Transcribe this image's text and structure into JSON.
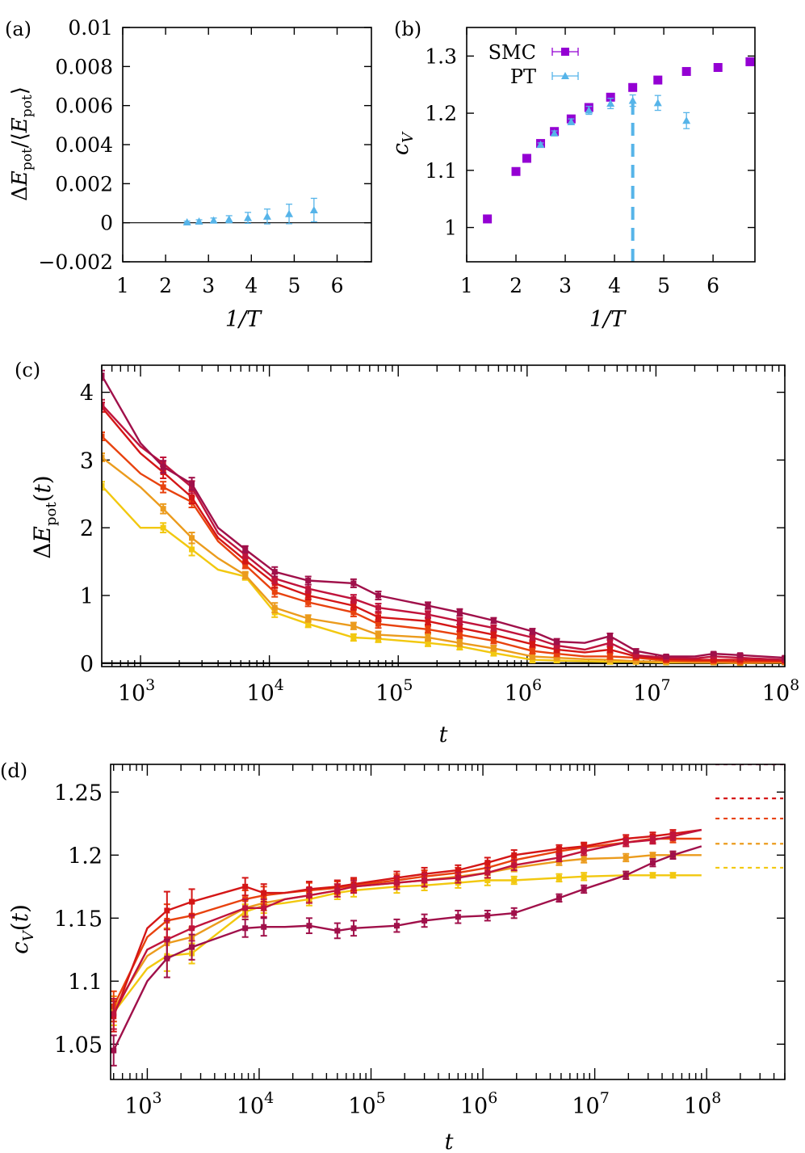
{
  "chart_data": [
    {
      "panel": "a",
      "panel_label": "(a)",
      "type": "scatter",
      "xlabel": "1/T",
      "ylabel": "ΔE_pot/⟨E_pot⟩",
      "xlim": [
        1,
        6.8
      ],
      "ylim": [
        -0.002,
        0.01
      ],
      "xticks": [
        1,
        2,
        3,
        4,
        5,
        6
      ],
      "yticks": [
        -0.002,
        0,
        0.002,
        0.004,
        0.006,
        0.008,
        0.01
      ],
      "ytick_labels": [
        "−0.002",
        "0",
        "0.002",
        "0.004",
        "0.006",
        "0.008",
        "0.01"
      ],
      "reference_line_y": 0,
      "series": [
        {
          "name": "PT",
          "color": "#56b4e9",
          "marker": "triangle",
          "x": [
            2.5,
            2.78,
            3.12,
            3.48,
            3.92,
            4.37,
            4.88,
            5.46
          ],
          "y": [
            3e-05,
            7e-05,
            0.00012,
            0.00018,
            0.00025,
            0.00032,
            0.00045,
            0.00065
          ],
          "err": [
            5e-05,
            8e-05,
            0.00012,
            0.00018,
            0.00028,
            0.00038,
            0.0005,
            0.0006
          ]
        }
      ]
    },
    {
      "panel": "b",
      "panel_label": "(b)",
      "type": "scatter",
      "xlabel": "1/T",
      "ylabel": "c_V",
      "xlim": [
        1,
        6.85
      ],
      "ylim": [
        0.94,
        1.35
      ],
      "xticks": [
        1,
        2,
        3,
        4,
        5,
        6
      ],
      "yticks": [
        1,
        1.1,
        1.2,
        1.3
      ],
      "ytick_labels": [
        "1",
        "1.1",
        "1.2",
        "1.3"
      ],
      "vertical_line_x": 4.37,
      "vertical_line_color": "#56b4e9",
      "legend_position": "top-left",
      "series": [
        {
          "name": "SMC",
          "color": "#9400d3",
          "marker": "square",
          "x": [
            1.42,
            2.0,
            2.22,
            2.5,
            2.78,
            3.12,
            3.48,
            3.92,
            4.37,
            4.88,
            5.46,
            6.1,
            6.75
          ],
          "y": [
            1.015,
            1.098,
            1.121,
            1.147,
            1.168,
            1.19,
            1.21,
            1.228,
            1.245,
            1.258,
            1.273,
            1.28,
            1.29
          ],
          "err": [
            0.003,
            0.003,
            0.003,
            0.003,
            0.003,
            0.003,
            0.003,
            0.003,
            0.003,
            0.003,
            0.003,
            0.003,
            0.003
          ]
        },
        {
          "name": "PT",
          "color": "#56b4e9",
          "marker": "triangle",
          "x": [
            2.5,
            2.78,
            3.12,
            3.48,
            3.92,
            4.37,
            4.88,
            5.46
          ],
          "y": [
            1.145,
            1.165,
            1.185,
            1.205,
            1.217,
            1.222,
            1.218,
            1.187
          ],
          "err": [
            0.003,
            0.004,
            0.005,
            0.007,
            0.009,
            0.01,
            0.013,
            0.014
          ]
        }
      ]
    },
    {
      "panel": "c",
      "panel_label": "(c)",
      "type": "line",
      "xlabel": "t",
      "ylabel": "ΔE_pot(t)",
      "xscale": "log",
      "xlim": [
        500,
        100000000
      ],
      "ylim": [
        -0.05,
        4.4
      ],
      "xtick_exponents": [
        3,
        4,
        5,
        6,
        7,
        8
      ],
      "yticks": [
        0,
        1,
        2,
        3,
        4
      ],
      "ytick_labels": [
        "0",
        "1",
        "2",
        "3",
        "4"
      ],
      "reference_line_y": 0,
      "x": [
        500,
        1000,
        1500,
        2500,
        4000,
        6500,
        11000,
        20000,
        45000,
        70000,
        170000,
        300000,
        550000,
        1100000,
        1700000,
        2800000,
        4400000,
        7000000,
        12000000,
        20000000,
        28000000,
        45000000,
        100000000
      ],
      "marker_indices": [
        0,
        2,
        3,
        5,
        6,
        7,
        8,
        9,
        10,
        11,
        12,
        13,
        14,
        16,
        17,
        18,
        20,
        21,
        22
      ],
      "series": [
        {
          "color": "#f2c80f",
          "values": [
            2.62,
            2.0,
            2.0,
            1.68,
            1.38,
            1.28,
            0.75,
            0.58,
            0.38,
            0.36,
            0.3,
            0.25,
            0.15,
            0.05,
            0.04,
            0.03,
            0.02,
            0.02,
            0.01,
            0.01,
            0.01,
            0.01,
            0.01
          ],
          "err": [
            0.06,
            0.06,
            0.07,
            0.09,
            0.06,
            0.05,
            0.07,
            0.05,
            0.05,
            0.05,
            0.05,
            0.05,
            0.04,
            0.04,
            0.03,
            0.03,
            0.03,
            0.03,
            0.02,
            0.02,
            0.02,
            0.02,
            0.02
          ]
        },
        {
          "color": "#eb9b1d",
          "values": [
            3.04,
            2.6,
            2.28,
            1.85,
            1.55,
            1.3,
            0.82,
            0.66,
            0.55,
            0.42,
            0.38,
            0.3,
            0.22,
            0.1,
            0.08,
            0.06,
            0.05,
            0.03,
            0.02,
            0.01,
            0.01,
            0.0,
            0.01
          ],
          "err": [
            0.06,
            0.06,
            0.07,
            0.08,
            0.06,
            0.05,
            0.07,
            0.05,
            0.05,
            0.05,
            0.05,
            0.05,
            0.04,
            0.04,
            0.03,
            0.03,
            0.03,
            0.03,
            0.02,
            0.02,
            0.02,
            0.02,
            0.02
          ]
        },
        {
          "color": "#e8420e",
          "values": [
            3.35,
            2.8,
            2.6,
            2.38,
            1.8,
            1.45,
            1.05,
            0.9,
            0.75,
            0.58,
            0.5,
            0.42,
            0.33,
            0.18,
            0.14,
            0.1,
            0.1,
            0.08,
            0.04,
            0.03,
            0.03,
            0.02,
            0.02
          ],
          "err": [
            0.06,
            0.06,
            0.08,
            0.08,
            0.06,
            0.05,
            0.07,
            0.06,
            0.06,
            0.06,
            0.05,
            0.05,
            0.04,
            0.04,
            0.04,
            0.03,
            0.04,
            0.03,
            0.02,
            0.02,
            0.02,
            0.02,
            0.02
          ]
        },
        {
          "color": "#d41616",
          "values": [
            3.78,
            3.1,
            2.82,
            2.45,
            1.85,
            1.52,
            1.18,
            1.0,
            0.85,
            0.68,
            0.62,
            0.52,
            0.42,
            0.28,
            0.2,
            0.16,
            0.2,
            0.1,
            0.06,
            0.05,
            0.05,
            0.05,
            0.04
          ],
          "err": [
            0.07,
            0.07,
            0.09,
            0.09,
            0.06,
            0.05,
            0.07,
            0.06,
            0.06,
            0.06,
            0.05,
            0.05,
            0.04,
            0.04,
            0.04,
            0.03,
            0.04,
            0.03,
            0.02,
            0.02,
            0.02,
            0.02,
            0.02
          ]
        },
        {
          "color": "#c0143c",
          "values": [
            3.82,
            3.2,
            2.95,
            2.6,
            1.92,
            1.6,
            1.25,
            1.1,
            0.95,
            0.82,
            0.72,
            0.62,
            0.52,
            0.38,
            0.26,
            0.2,
            0.3,
            0.12,
            0.08,
            0.07,
            0.1,
            0.08,
            0.05
          ],
          "err": [
            0.07,
            0.07,
            0.09,
            0.09,
            0.06,
            0.05,
            0.07,
            0.06,
            0.06,
            0.06,
            0.05,
            0.05,
            0.04,
            0.04,
            0.04,
            0.03,
            0.04,
            0.03,
            0.02,
            0.02,
            0.02,
            0.02,
            0.02
          ]
        },
        {
          "color": "#a0104a",
          "values": [
            4.25,
            3.25,
            2.9,
            2.65,
            2.0,
            1.68,
            1.35,
            1.22,
            1.18,
            1.0,
            0.85,
            0.75,
            0.63,
            0.47,
            0.32,
            0.3,
            0.4,
            0.18,
            0.1,
            0.1,
            0.14,
            0.12,
            0.08
          ],
          "err": [
            0.07,
            0.07,
            0.09,
            0.09,
            0.06,
            0.05,
            0.07,
            0.06,
            0.06,
            0.06,
            0.05,
            0.05,
            0.04,
            0.04,
            0.04,
            0.03,
            0.04,
            0.03,
            0.02,
            0.02,
            0.02,
            0.02,
            0.02
          ]
        }
      ]
    },
    {
      "panel": "d",
      "panel_label": "(d)",
      "type": "line",
      "xlabel": "t",
      "ylabel": "c_V(t)",
      "xscale": "log",
      "xlim": [
        470,
        500000000
      ],
      "ylim": [
        1.022,
        1.272
      ],
      "xtick_exponents": [
        3,
        4,
        5,
        6,
        7,
        8
      ],
      "yticks": [
        1.05,
        1.1,
        1.15,
        1.2,
        1.25
      ],
      "ytick_labels": [
        "1.05",
        "1.1",
        "1.15",
        "1.2",
        "1.25"
      ],
      "x": [
        500,
        1000,
        1500,
        2500,
        7500,
        11000,
        17000,
        28000,
        50000,
        70000,
        170000,
        300000,
        600000,
        1100000,
        1900000,
        4800000,
        8000000,
        19000000,
        33000000,
        50000000,
        90000000
      ],
      "marker_indices": [
        0,
        2,
        3,
        4,
        5,
        7,
        8,
        9,
        10,
        11,
        12,
        13,
        14,
        15,
        16,
        17,
        18,
        19
      ],
      "series": [
        {
          "color": "#f2c80f",
          "values": [
            1.075,
            1.11,
            1.12,
            1.122,
            1.155,
            1.16,
            1.162,
            1.165,
            1.17,
            1.172,
            1.175,
            1.176,
            1.178,
            1.18,
            1.18,
            1.182,
            1.183,
            1.184,
            1.184,
            1.184,
            1.184
          ],
          "err": [
            0.01,
            0.01,
            0.012,
            0.008,
            0.006,
            0.006,
            0.006,
            0.005,
            0.005,
            0.005,
            0.005,
            0.004,
            0.004,
            0.004,
            0.003,
            0.003,
            0.003,
            0.003,
            0.002,
            0.002,
            0.002
          ],
          "limit": 1.19
        },
        {
          "color": "#eb9b1d",
          "values": [
            1.078,
            1.12,
            1.13,
            1.135,
            1.158,
            1.162,
            1.165,
            1.168,
            1.172,
            1.175,
            1.178,
            1.18,
            1.183,
            1.186,
            1.19,
            1.195,
            1.197,
            1.198,
            1.2,
            1.2,
            1.2
          ],
          "err": [
            0.01,
            0.01,
            0.012,
            0.008,
            0.006,
            0.006,
            0.006,
            0.005,
            0.005,
            0.005,
            0.005,
            0.004,
            0.004,
            0.004,
            0.003,
            0.003,
            0.003,
            0.003,
            0.002,
            0.002,
            0.002
          ],
          "limit": 1.209
        },
        {
          "color": "#e8420e",
          "values": [
            1.08,
            1.135,
            1.148,
            1.152,
            1.165,
            1.168,
            1.17,
            1.172,
            1.174,
            1.176,
            1.18,
            1.183,
            1.186,
            1.19,
            1.196,
            1.203,
            1.206,
            1.21,
            1.213,
            1.213,
            1.213
          ],
          "err": [
            0.012,
            0.012,
            0.013,
            0.01,
            0.007,
            0.007,
            0.006,
            0.006,
            0.005,
            0.005,
            0.005,
            0.005,
            0.004,
            0.004,
            0.004,
            0.003,
            0.003,
            0.003,
            0.003,
            0.003,
            0.003
          ],
          "limit": 1.229
        },
        {
          "color": "#d41616",
          "values": [
            1.072,
            1.142,
            1.156,
            1.163,
            1.175,
            1.17,
            1.17,
            1.173,
            1.175,
            1.177,
            1.182,
            1.185,
            1.188,
            1.194,
            1.2,
            1.205,
            1.207,
            1.213,
            1.215,
            1.217,
            1.22
          ],
          "err": [
            0.012,
            0.012,
            0.015,
            0.01,
            0.007,
            0.007,
            0.006,
            0.006,
            0.005,
            0.005,
            0.005,
            0.005,
            0.004,
            0.004,
            0.004,
            0.003,
            0.003,
            0.003,
            0.003,
            0.003,
            0.003
          ],
          "limit": 1.245
        },
        {
          "color": "#c0143c",
          "values": [
            1.074,
            1.125,
            1.133,
            1.142,
            1.158,
            1.158,
            1.165,
            1.168,
            1.172,
            1.175,
            1.178,
            1.18,
            1.182,
            1.186,
            1.192,
            1.198,
            1.203,
            1.21,
            1.212,
            1.215,
            1.22
          ],
          "err": [
            0.012,
            0.012,
            0.015,
            0.01,
            0.007,
            0.007,
            0.006,
            0.006,
            0.005,
            0.005,
            0.005,
            0.005,
            0.004,
            0.004,
            0.004,
            0.003,
            0.003,
            0.003,
            0.003,
            0.003,
            0.003
          ]
        },
        {
          "color": "#a0104a",
          "values": [
            1.045,
            1.1,
            1.118,
            1.127,
            1.142,
            1.143,
            1.143,
            1.144,
            1.14,
            1.142,
            1.144,
            1.148,
            1.151,
            1.152,
            1.154,
            1.166,
            1.173,
            1.184,
            1.194,
            1.2,
            1.207
          ],
          "err": [
            0.012,
            0.012,
            0.015,
            0.01,
            0.007,
            0.007,
            0.006,
            0.006,
            0.006,
            0.006,
            0.005,
            0.005,
            0.005,
            0.004,
            0.004,
            0.003,
            0.003,
            0.003,
            0.003,
            0.003,
            0.003
          ],
          "limit": 1.272
        }
      ]
    }
  ]
}
